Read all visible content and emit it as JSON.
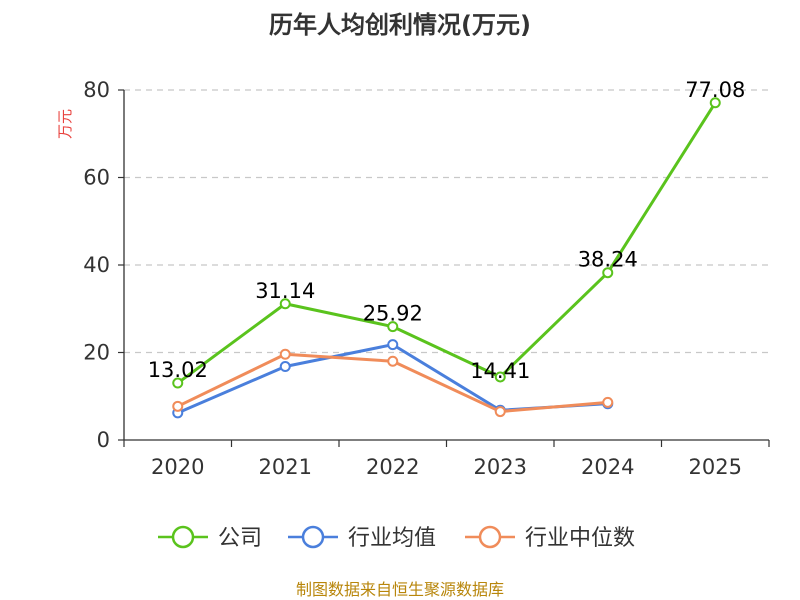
{
  "chart_data": {
    "type": "line",
    "title": "历年人均创利情况(万元)",
    "ylabel": "万元",
    "ylim": [
      0,
      80
    ],
    "yticks": [
      0,
      20,
      40,
      60,
      80
    ],
    "categories": [
      "2020",
      "2021",
      "2022",
      "2023",
      "2024",
      "2025"
    ],
    "grid": true,
    "legend_position": "bottom",
    "series": [
      {
        "name": "公司",
        "color": "#5ac31d",
        "values": [
          13.02,
          31.14,
          25.92,
          14.41,
          38.24,
          77.08
        ],
        "data_labels": [
          "13.02",
          "31.14",
          "25.92",
          "14.41",
          "38.24",
          "77.08"
        ]
      },
      {
        "name": "行业均值",
        "color": "#4a7fdc",
        "values": [
          6.2,
          16.8,
          21.8,
          6.8,
          8.3,
          null
        ]
      },
      {
        "name": "行业中位数",
        "color": "#f08c5a",
        "values": [
          7.7,
          19.6,
          18.0,
          6.5,
          8.6,
          null
        ]
      }
    ]
  },
  "source": "制图数据来自恒生聚源数据库"
}
